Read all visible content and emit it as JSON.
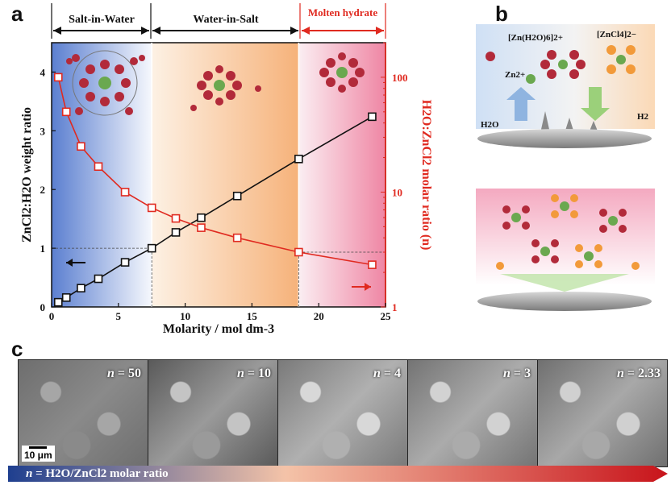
{
  "panel_letters": {
    "a": "a",
    "b": "b",
    "c": "c"
  },
  "regions": {
    "salt_in_water": "Salt-in-Water",
    "water_in_salt": "Water-in-Salt",
    "molten_hydrate": "Molten hydrate"
  },
  "chart_data": {
    "type": "line",
    "xlabel": "Molarity / mol dm-3",
    "xlim": [
      0,
      25
    ],
    "x_ticks": [
      "0",
      "5",
      "10",
      "15",
      "20",
      "25"
    ],
    "ylabel_left": "ZnCl2:H2O weight ratio",
    "ylim_left": [
      0,
      4.5
    ],
    "y_ticks_left": [
      "0",
      "1",
      "2",
      "3",
      "4"
    ],
    "ylabel_right": "H2O:ZnCl2 molar ratio (n)",
    "ylim_right": [
      1,
      200
    ],
    "y_scale_right": "log",
    "y_ticks_right": [
      "1",
      "10",
      "100"
    ],
    "series": [
      {
        "axis": "left",
        "color": "#111111",
        "x": [
          0.5,
          1.1,
          2.2,
          3.5,
          5.5,
          7.5,
          9.3,
          11.2,
          13.9,
          18.5,
          24.0
        ],
        "y": [
          0.08,
          0.16,
          0.32,
          0.48,
          0.76,
          1.0,
          1.27,
          1.52,
          1.89,
          2.52,
          3.24
        ]
      },
      {
        "axis": "right",
        "color": "#e02a20",
        "x": [
          0.5,
          1.1,
          2.2,
          3.5,
          5.5,
          7.5,
          9.3,
          11.2,
          13.9,
          18.5,
          24.0
        ],
        "y": [
          100,
          50,
          25,
          16.7,
          10,
          7.3,
          5.9,
          4.9,
          4,
          3,
          2.33
        ]
      }
    ],
    "reference_lines": {
      "x": [
        7.5,
        18.5
      ]
    }
  },
  "panel_b": {
    "label_zn_h2o6": "[Zn(H2O)6]2+",
    "label_zncl4": "[ZnCl4]2−",
    "label_zn2": "Zn2+",
    "label_h2o": "H2O",
    "label_h2": "H2"
  },
  "panel_c": {
    "images": [
      {
        "n_label": "n",
        "n_value": " = 50"
      },
      {
        "n_label": "n",
        "n_value": " = 10"
      },
      {
        "n_label": "n",
        "n_value": " = 4"
      },
      {
        "n_label": "n",
        "n_value": " = 3"
      },
      {
        "n_label": "n",
        "n_value": " = 2.33"
      }
    ],
    "scale_bar": "10 μm",
    "ratio_bar_n": "n",
    "ratio_bar_text": " = H2O/ZnCl2 molar ratio"
  }
}
